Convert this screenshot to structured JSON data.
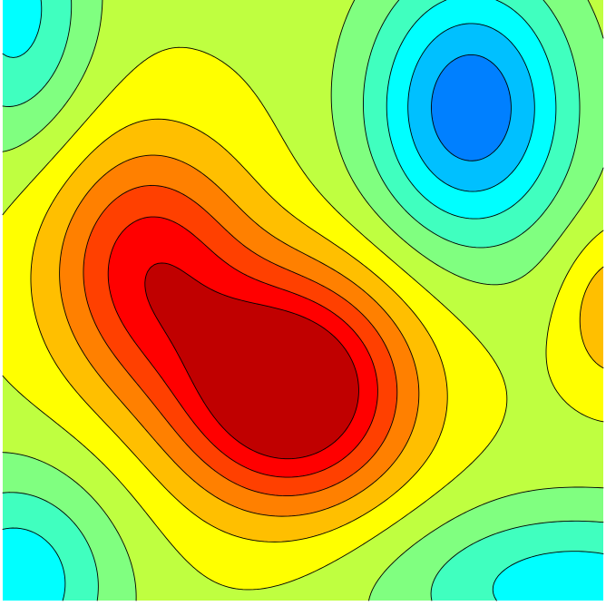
{
  "chart_data": {
    "type": "contour",
    "title": "",
    "xlabel": "",
    "ylabel": "",
    "axes_visible": false,
    "grid": false,
    "legend": "none",
    "contour_lines": true,
    "contour_line_color": "#000000",
    "colormap": "jet",
    "levels": [
      -4,
      -3,
      -2,
      -1,
      0,
      1,
      2,
      3,
      4,
      5,
      6
    ],
    "level_colors": [
      "#0080ff",
      "#00c0ff",
      "#00ffff",
      "#40ffbf",
      "#80ff80",
      "#bfff40",
      "#ffff00",
      "#ffbf00",
      "#ff8000",
      "#ff4000",
      "#ff0000",
      "#c00000"
    ],
    "field_components": [
      {
        "kind": "hill",
        "x": 0.48,
        "y": 0.65,
        "amplitude": 7.2,
        "sigma_x": 0.14,
        "sigma_y": 0.14
      },
      {
        "kind": "hill",
        "x": 0.24,
        "y": 0.44,
        "amplitude": 4.6,
        "sigma_x": 0.12,
        "sigma_y": 0.15
      },
      {
        "kind": "valley",
        "x": 0.78,
        "y": 0.18,
        "amplitude": -5.6,
        "sigma_x": 0.12,
        "sigma_y": 0.16
      },
      {
        "kind": "valley",
        "x": 0.02,
        "y": 0.02,
        "amplitude": -3.2,
        "sigma_x": 0.09,
        "sigma_y": 0.16
      },
      {
        "kind": "valley",
        "x": 0.02,
        "y": 0.97,
        "amplitude": -3.6,
        "sigma_x": 0.12,
        "sigma_y": 0.13
      },
      {
        "kind": "valley",
        "x": 0.95,
        "y": 0.98,
        "amplitude": -3.4,
        "sigma_x": 0.22,
        "sigma_y": 0.1
      },
      {
        "kind": "hill",
        "x": 1.02,
        "y": 0.52,
        "amplitude": 2.2,
        "sigma_x": 0.06,
        "sigma_y": 0.09
      }
    ],
    "baseline": 0.8
  }
}
